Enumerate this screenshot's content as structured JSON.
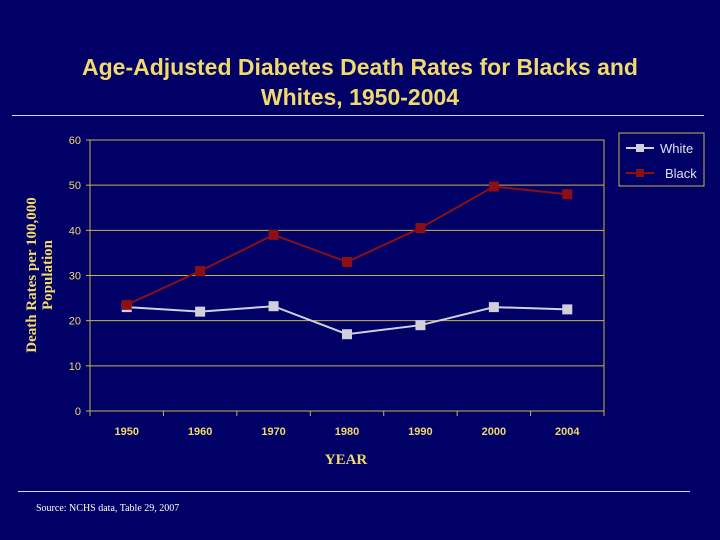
{
  "colors": {
    "background": "#000066",
    "title": "#f2d96b",
    "grid": "#c8b44a",
    "white_series": "#d0d0dc",
    "black_series": "#8b0f14"
  },
  "title_line1": "Age-Adjusted Diabetes Death Rates for Blacks and",
  "title_line2": "Whites, 1950-2004",
  "source": "Source: NCHS data, Table 29, 2007",
  "chart_data": {
    "type": "line",
    "title": "Age-Adjusted Diabetes Death Rates for Blacks and Whites, 1950-2004",
    "xlabel": "YEAR",
    "ylabel_line1": "Death Rates per 100,000",
    "ylabel_line2": "Population",
    "categories": [
      "1950",
      "1960",
      "1970",
      "1980",
      "1990",
      "2000",
      "2004"
    ],
    "yticks": [
      "0",
      "10",
      "20",
      "30",
      "40",
      "50",
      "60"
    ],
    "ylim": [
      0,
      60
    ],
    "grid": true,
    "legend_position": "top-right",
    "series": [
      {
        "name": "White",
        "values": [
          23.0,
          22.0,
          23.2,
          17.0,
          19.0,
          23.0,
          22.5
        ]
      },
      {
        "name": "Black",
        "values": [
          23.5,
          31.0,
          39.0,
          33.0,
          40.5,
          49.7,
          48.0
        ]
      }
    ]
  }
}
